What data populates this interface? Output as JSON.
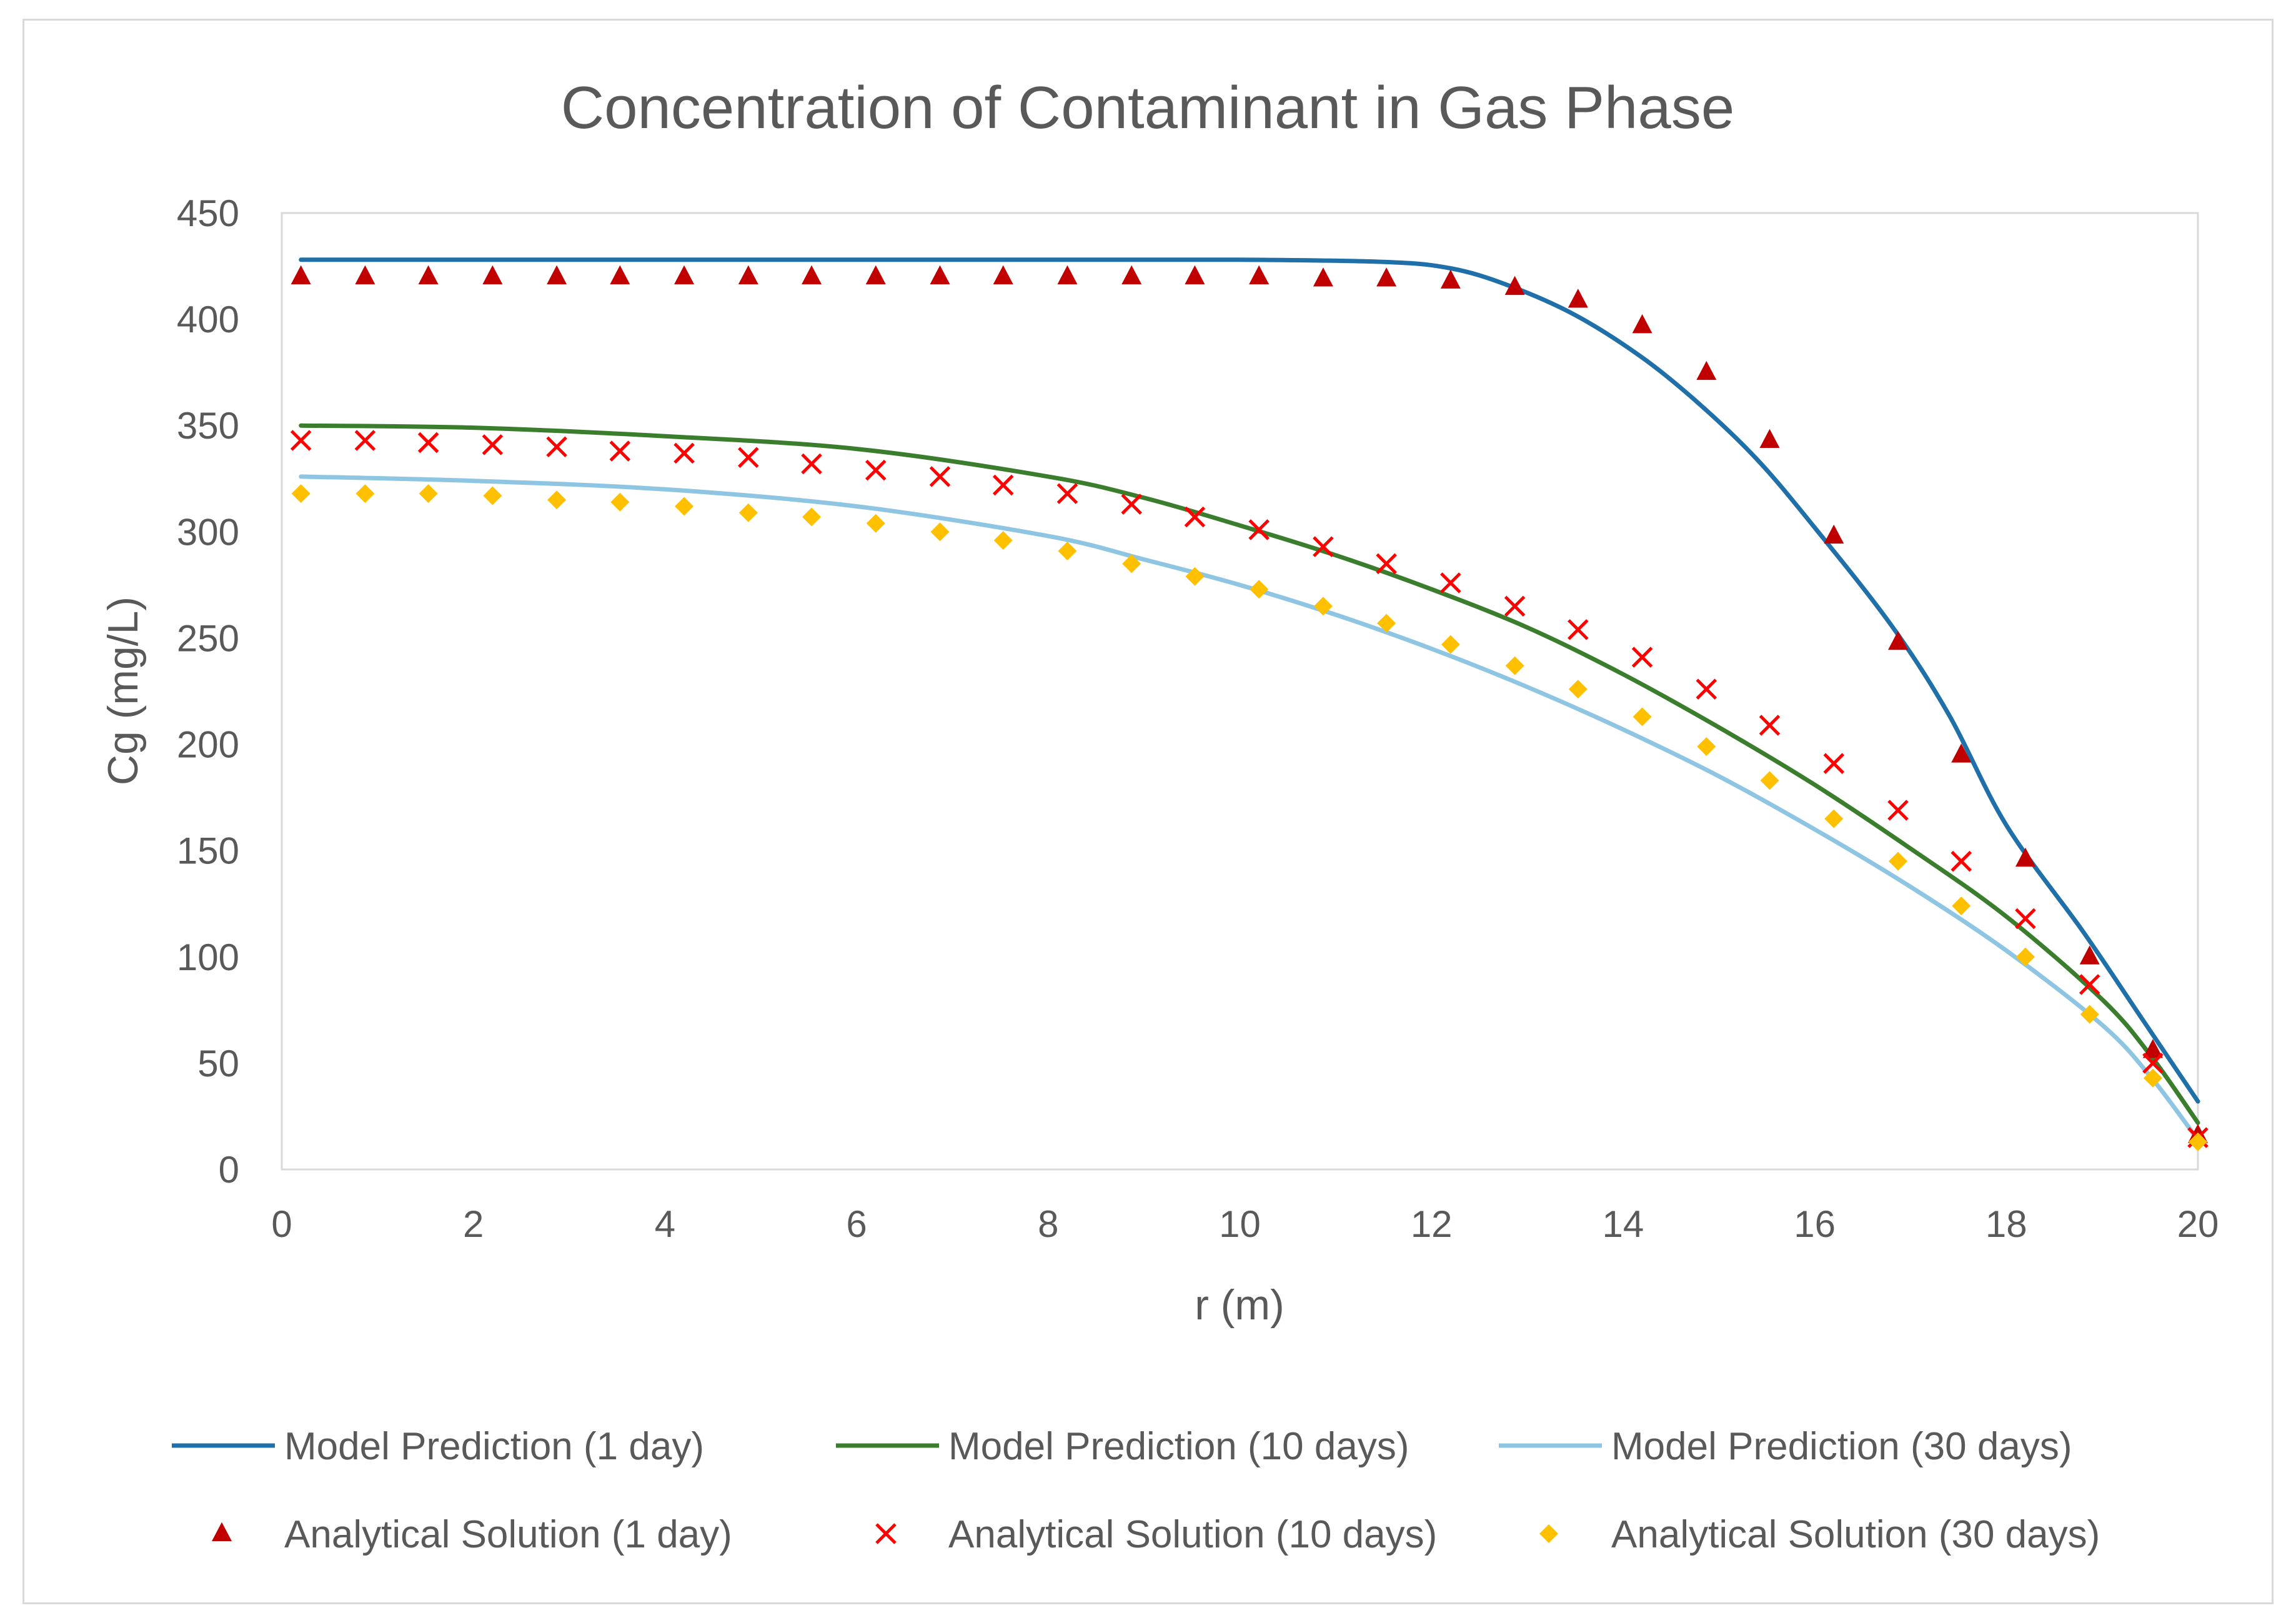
{
  "chart_data": {
    "type": "line",
    "title": "Concentration of Contaminant in Gas Phase",
    "xlabel": "r (m)",
    "ylabel": "Cg (mg/L)",
    "xlim": [
      0,
      20
    ],
    "ylim": [
      0,
      450
    ],
    "xticks": [
      "0",
      "2",
      "4",
      "6",
      "8",
      "10",
      "12",
      "14",
      "16",
      "18",
      "20"
    ],
    "yticks": [
      "0",
      "50",
      "100",
      "150",
      "200",
      "250",
      "300",
      "350",
      "400",
      "450"
    ],
    "grid": false,
    "legend_position": "bottom",
    "series": [
      {
        "name": "Model Prediction (1 day)",
        "kind": "line",
        "color": "#1f6fa8",
        "x": [
          0.2,
          2,
          4,
          6,
          8,
          10,
          11.5,
          12.2,
          12.8,
          13.5,
          14.2,
          14.8,
          15.4,
          16,
          16.8,
          17.4,
          18,
          18.8,
          19.4,
          20
        ],
        "y": [
          428,
          428,
          428,
          428,
          428,
          428,
          427,
          424,
          416,
          402,
          382,
          360,
          334,
          302,
          256,
          214,
          162,
          112,
          72,
          32
        ]
      },
      {
        "name": "Model Prediction (10 days)",
        "kind": "line",
        "color": "#3a7d2c",
        "x": [
          0.2,
          2,
          4,
          6,
          8,
          9,
          10,
          11,
          12,
          13,
          14,
          15,
          16,
          17,
          18,
          19,
          19.5,
          20
        ],
        "y": [
          350,
          349,
          345,
          339,
          326,
          316,
          303,
          289,
          273,
          255,
          233,
          208,
          181,
          151,
          119,
          80,
          54,
          22
        ]
      },
      {
        "name": "Model Prediction (30 days)",
        "kind": "line",
        "color": "#8ec5e3",
        "x": [
          0.2,
          2,
          4,
          6,
          8,
          9,
          10,
          11,
          12,
          13,
          14,
          15,
          16,
          17,
          18,
          19,
          19.5,
          20
        ],
        "y": [
          326,
          324,
          320,
          312,
          298,
          287,
          275,
          261,
          245,
          227,
          207,
          185,
          160,
          133,
          103,
          68,
          44,
          14
        ]
      },
      {
        "name": "Analytical Solution (1 day)",
        "kind": "marker",
        "marker": "triangle",
        "color": "#c00000",
        "x": [
          0.2,
          0.87,
          1.53,
          2.2,
          2.87,
          3.53,
          4.2,
          4.87,
          5.53,
          6.2,
          6.87,
          7.53,
          8.2,
          8.87,
          9.53,
          10.2,
          10.87,
          11.53,
          12.2,
          12.87,
          13.53,
          14.2,
          14.87,
          15.53,
          16.2,
          16.87,
          17.53,
          18.2,
          18.87,
          19.53,
          20.2
        ],
        "y": [
          420,
          420,
          420,
          420,
          420,
          420,
          420,
          420,
          420,
          420,
          420,
          420,
          420,
          420,
          420,
          420,
          419,
          419,
          418,
          415,
          409,
          397,
          375,
          343,
          298,
          248,
          195,
          146,
          100,
          56,
          16
        ]
      },
      {
        "name": "Analytical Solution (10 days)",
        "kind": "marker",
        "marker": "x",
        "color": "#ff0000",
        "x": [
          0.2,
          0.87,
          1.53,
          2.2,
          2.87,
          3.53,
          4.2,
          4.87,
          5.53,
          6.2,
          6.87,
          7.53,
          8.2,
          8.87,
          9.53,
          10.2,
          10.87,
          11.53,
          12.2,
          12.87,
          13.53,
          14.2,
          14.87,
          15.53,
          16.2,
          16.87,
          17.53,
          18.2,
          18.87,
          19.53,
          20.2
        ],
        "y": [
          343,
          343,
          342,
          341,
          340,
          338,
          337,
          335,
          332,
          329,
          326,
          322,
          318,
          313,
          307,
          301,
          293,
          285,
          276,
          265,
          254,
          241,
          226,
          209,
          191,
          169,
          145,
          118,
          87,
          50,
          15
        ]
      },
      {
        "name": "Analytical Solution (30 days)",
        "kind": "marker",
        "marker": "diamond",
        "color": "#ffc000",
        "x": [
          0.2,
          0.87,
          1.53,
          2.2,
          2.87,
          3.53,
          4.2,
          4.87,
          5.53,
          6.2,
          6.87,
          7.53,
          8.2,
          8.87,
          9.53,
          10.2,
          10.87,
          11.53,
          12.2,
          12.87,
          13.53,
          14.2,
          14.87,
          15.53,
          16.2,
          16.87,
          17.53,
          18.2,
          18.87,
          19.53,
          20.2
        ],
        "y": [
          318,
          318,
          318,
          317,
          315,
          314,
          312,
          309,
          307,
          304,
          300,
          296,
          291,
          285,
          279,
          273,
          265,
          257,
          247,
          237,
          226,
          213,
          199,
          183,
          165,
          145,
          124,
          100,
          73,
          43,
          13
        ]
      }
    ]
  }
}
